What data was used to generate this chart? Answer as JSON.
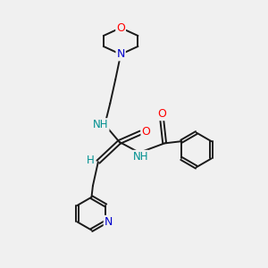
{
  "bg_color": "#f0f0f0",
  "bond_color": "#1a1a1a",
  "atom_colors": {
    "O": "#ff0000",
    "N": "#0000cc",
    "NH": "#009090",
    "H": "#009090"
  },
  "lw": 1.4
}
